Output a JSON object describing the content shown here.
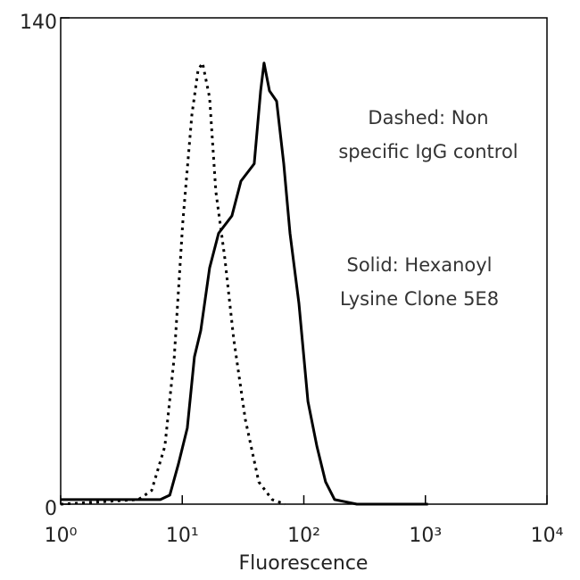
{
  "chart_data": {
    "type": "line",
    "x_label": "Fluorescence",
    "log_x": true,
    "xlim": [
      1,
      10000
    ],
    "ylim": [
      0,
      140
    ],
    "xticks": [
      {
        "value": 1,
        "label": "10⁰"
      },
      {
        "value": 10,
        "label": "10¹"
      },
      {
        "value": 100,
        "label": "10²"
      },
      {
        "value": 1000,
        "label": "10³"
      },
      {
        "value": 10000,
        "label": "10⁴"
      }
    ],
    "yticks": [
      0,
      140
    ],
    "annotations": [
      [
        "Dashed: Non",
        "specific IgG control"
      ],
      [
        "Solid: Hexanoyl",
        "Lysine Clone 5E8"
      ]
    ],
    "series": [
      {
        "style": "dotted",
        "color": "#000000",
        "x": [
          1,
          4.35,
          5.6,
          7.2,
          8.6,
          10.1,
          12,
          13.5,
          14.7,
          16.8,
          18.9,
          22.4,
          26.5,
          33,
          42.6,
          55,
          70
        ],
        "values": [
          0,
          1.3,
          3.9,
          16.7,
          42.4,
          81,
          112,
          125,
          127,
          117,
          90,
          70.7,
          47.6,
          24.4,
          6.4,
          1.3,
          0
        ]
      },
      {
        "style": "solid",
        "color": "#000000",
        "x": [
          1,
          6.6,
          7.9,
          9.3,
          11,
          12.6,
          14.2,
          16.8,
          19.9,
          25.6,
          30.4,
          39.1,
          44.1,
          47.1,
          52.2,
          59.7,
          68.4,
          76.9,
          91.2,
          108,
          128,
          151,
          179,
          273,
          1050
        ],
        "values": [
          1.3,
          1.3,
          2.6,
          11.6,
          21.9,
          42.4,
          50,
          68,
          78,
          83,
          93,
          98,
          119,
          127,
          119,
          116,
          98,
          78,
          57.8,
          29.6,
          16.7,
          6.4,
          1.3,
          0,
          0
        ]
      }
    ]
  }
}
